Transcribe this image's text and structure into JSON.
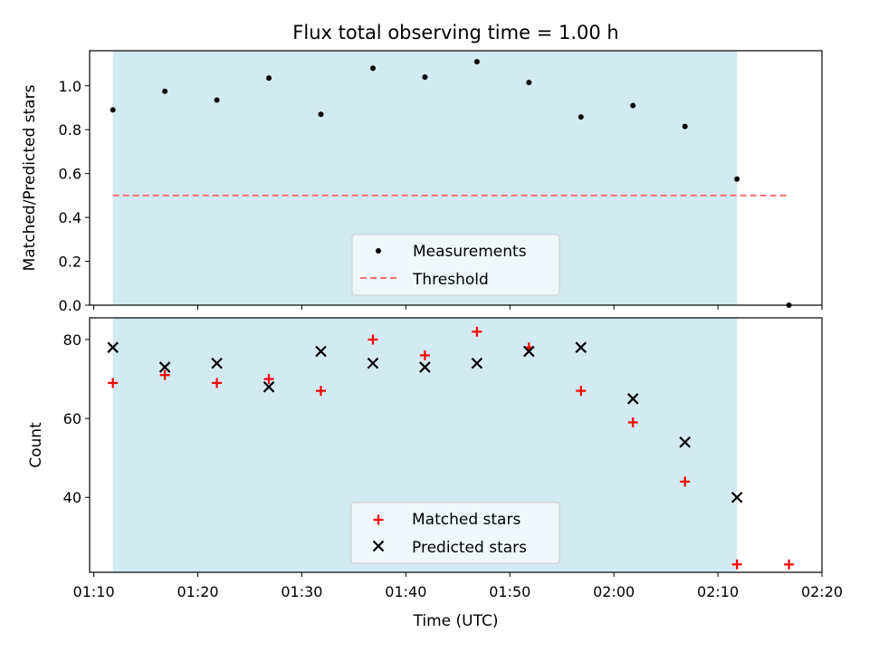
{
  "chart_data": [
    {
      "type": "scatter",
      "title": "Flux total observing time = 1.00 h",
      "ylabel": "Matched/Predicted stars",
      "xlabel": "",
      "xlim": [
        "01:09:36",
        "02:20:00"
      ],
      "ylim": [
        0,
        1.16
      ],
      "yticks": [
        0.0,
        0.2,
        0.4,
        0.6,
        0.8,
        1.0
      ],
      "ytick_labels": [
        "0.0",
        "0.2",
        "0.4",
        "0.6",
        "0.8",
        "1.0"
      ],
      "shaded_span": [
        "01:11:50",
        "02:11:50"
      ],
      "series": [
        {
          "name": "Measurements",
          "kind": "scatter",
          "marker": "dot",
          "color": "#000000",
          "x": [
            "01:11:50",
            "01:16:50",
            "01:21:50",
            "01:26:50",
            "01:31:50",
            "01:36:50",
            "01:41:50",
            "01:46:50",
            "01:51:50",
            "01:56:50",
            "02:01:50",
            "02:06:50",
            "02:11:50",
            "02:16:50"
          ],
          "y": [
            0.89,
            0.975,
            0.935,
            1.035,
            0.87,
            1.08,
            1.04,
            1.11,
            1.015,
            0.858,
            0.91,
            0.815,
            0.575,
            0.0
          ]
        },
        {
          "name": "Threshold",
          "kind": "line",
          "style": "dashed",
          "color": "#ff7070",
          "x": [
            "01:11:50",
            "02:16:50"
          ],
          "y": [
            0.5,
            0.5
          ]
        }
      ],
      "legend": "bottom-center"
    },
    {
      "type": "scatter",
      "title": "",
      "ylabel": "Count",
      "xlabel": "Time (UTC)",
      "xlim": [
        "01:09:36",
        "02:20:00"
      ],
      "ylim": [
        21,
        85.5
      ],
      "yticks": [
        40,
        60,
        80
      ],
      "ytick_labels": [
        "40",
        "60",
        "80"
      ],
      "xticks": [
        "01:10",
        "01:20",
        "01:30",
        "01:40",
        "01:50",
        "02:00",
        "02:10",
        "02:20"
      ],
      "shaded_span": [
        "01:11:50",
        "02:11:50"
      ],
      "series": [
        {
          "name": "Matched stars",
          "kind": "scatter",
          "marker": "plus",
          "color": "#ff0000",
          "x": [
            "01:11:50",
            "01:16:50",
            "01:21:50",
            "01:26:50",
            "01:31:50",
            "01:36:50",
            "01:41:50",
            "01:46:50",
            "01:51:50",
            "01:56:50",
            "02:01:50",
            "02:06:50",
            "02:11:50",
            "02:16:50"
          ],
          "y": [
            69,
            71,
            69,
            70,
            67,
            80,
            76,
            82,
            78,
            67,
            59,
            44,
            23,
            23
          ]
        },
        {
          "name": "Predicted stars",
          "kind": "scatter",
          "marker": "x",
          "color": "#000000",
          "x": [
            "01:11:50",
            "01:16:50",
            "01:21:50",
            "01:26:50",
            "01:31:50",
            "01:36:50",
            "01:41:50",
            "01:46:50",
            "01:51:50",
            "01:56:50",
            "02:01:50",
            "02:06:50",
            "02:11:50"
          ],
          "y": [
            78,
            73,
            74,
            68,
            77,
            74,
            73,
            74,
            77,
            78,
            65,
            54,
            40
          ]
        }
      ],
      "legend": "bottom-center"
    }
  ],
  "colors": {
    "span_fill": "#add8e6",
    "legend_bg": "#f5f9fc",
    "legend_border": "#cccccc"
  }
}
